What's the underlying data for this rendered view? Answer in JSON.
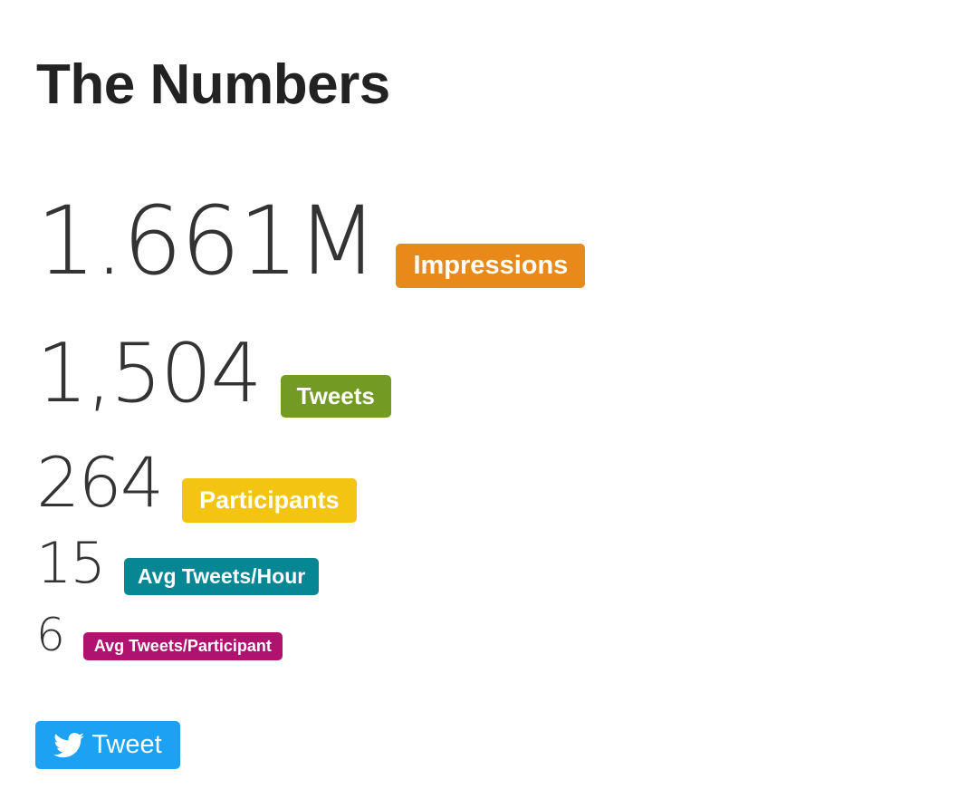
{
  "header": {
    "title": "The Numbers"
  },
  "stats": [
    {
      "value": "1.661M",
      "label": "Impressions"
    },
    {
      "value": "1,504",
      "label": "Tweets"
    },
    {
      "value": "264",
      "label": "Participants"
    },
    {
      "value": "15",
      "label": "Avg Tweets/Hour"
    },
    {
      "value": "6",
      "label": "Avg Tweets/Participant"
    }
  ],
  "button": {
    "label": "Tweet"
  }
}
